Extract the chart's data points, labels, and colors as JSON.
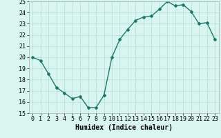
{
  "x": [
    0,
    1,
    2,
    3,
    4,
    5,
    6,
    7,
    8,
    9,
    10,
    11,
    12,
    13,
    14,
    15,
    16,
    17,
    18,
    19,
    20,
    21,
    22,
    23
  ],
  "y": [
    20.0,
    19.7,
    18.5,
    17.3,
    16.8,
    16.3,
    16.5,
    15.5,
    15.5,
    16.6,
    20.0,
    21.6,
    22.5,
    23.3,
    23.6,
    23.7,
    24.3,
    25.0,
    24.6,
    24.7,
    24.1,
    23.0,
    23.1,
    21.6
  ],
  "line_color": "#1a7a6a",
  "marker": "D",
  "marker_size": 2.0,
  "bg_color": "#d8f5f0",
  "grid_color": "#b0ddd8",
  "xlabel": "Humidex (Indice chaleur)",
  "ylim": [
    15,
    25
  ],
  "xlim": [
    -0.5,
    23.5
  ],
  "yticks": [
    15,
    16,
    17,
    18,
    19,
    20,
    21,
    22,
    23,
    24,
    25
  ],
  "xticks": [
    0,
    1,
    2,
    3,
    4,
    5,
    6,
    7,
    8,
    9,
    10,
    11,
    12,
    13,
    14,
    15,
    16,
    17,
    18,
    19,
    20,
    21,
    22,
    23
  ],
  "xlabel_fontsize": 7,
  "tick_fontsize": 6,
  "linewidth": 1.0
}
